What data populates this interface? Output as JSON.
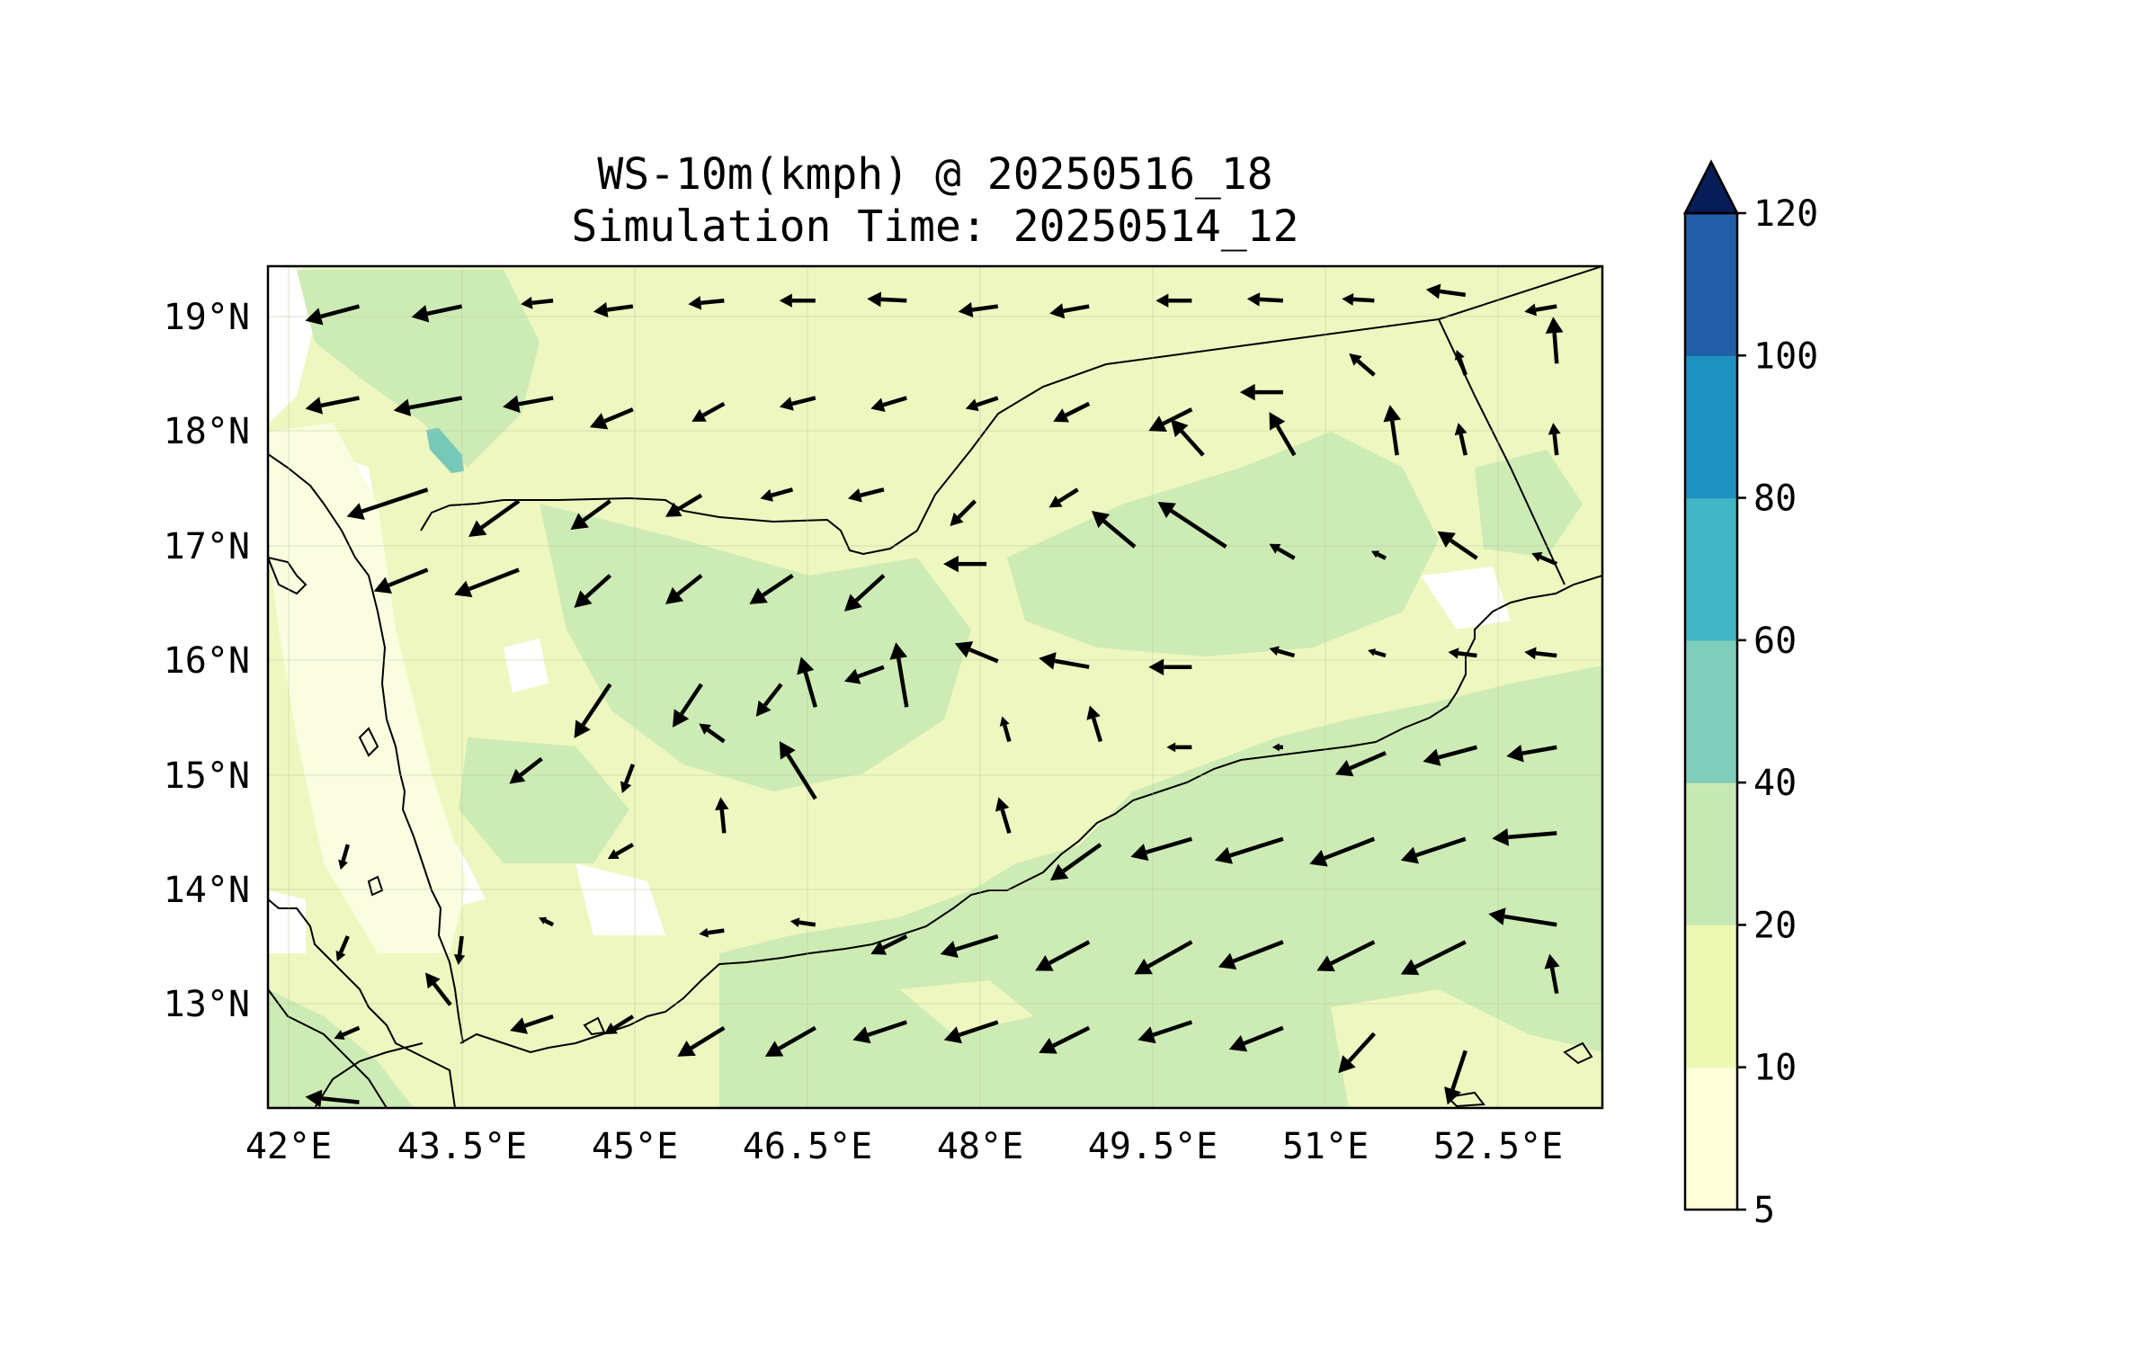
{
  "title": {
    "line1": "WS-10m(kmph) @ 20250516_18",
    "line2": "Simulation Time: 20250514_12"
  },
  "map": {
    "lon_range": [
      41.8,
      53.5
    ],
    "lat_range": [
      12.1,
      19.45
    ],
    "x_ticks": [
      "42°E",
      "43.5°E",
      "45°E",
      "46.5°E",
      "48°E",
      "49.5°E",
      "51°E",
      "52.5°E"
    ],
    "y_ticks": [
      "19°N",
      "18°N",
      "17°N",
      "16°N",
      "15°N",
      "14°N",
      "13°N"
    ],
    "region": "Yemen / southern Arabian Peninsula",
    "background_color": "#eef7c0",
    "sea_color": "#cdebb4"
  },
  "colorbar": {
    "levels": [
      "5",
      "10",
      "20",
      "40",
      "60",
      "80",
      "100",
      "120"
    ],
    "colors": [
      "#ffffd9",
      "#edf8b1",
      "#c7e9b4",
      "#7fcdbb",
      "#41b6c4",
      "#1d91c0",
      "#225ea8",
      "#0c2c84"
    ],
    "extend": "max",
    "extend_color": "#081d58"
  },
  "wind_vectors": {
    "description": "black quiver arrows showing 10m wind direction and magnitude",
    "arrows": [
      {
        "lon": 42.6,
        "lat": 19.1,
        "u": -30,
        "v": -8
      },
      {
        "lon": 43.5,
        "lat": 19.1,
        "u": -28,
        "v": -6
      },
      {
        "lon": 44.3,
        "lat": 19.15,
        "u": -18,
        "v": -2
      },
      {
        "lon": 45.0,
        "lat": 19.1,
        "u": -22,
        "v": -3
      },
      {
        "lon": 45.8,
        "lat": 19.15,
        "u": -20,
        "v": -2
      },
      {
        "lon": 46.6,
        "lat": 19.15,
        "u": -20,
        "v": 0
      },
      {
        "lon": 47.4,
        "lat": 19.15,
        "u": -22,
        "v": 1
      },
      {
        "lon": 48.2,
        "lat": 19.1,
        "u": -22,
        "v": -3
      },
      {
        "lon": 49.0,
        "lat": 19.1,
        "u": -22,
        "v": -4
      },
      {
        "lon": 49.9,
        "lat": 19.15,
        "u": -20,
        "v": 0
      },
      {
        "lon": 50.7,
        "lat": 19.15,
        "u": -20,
        "v": 1
      },
      {
        "lon": 51.5,
        "lat": 19.15,
        "u": -18,
        "v": 1
      },
      {
        "lon": 52.3,
        "lat": 19.2,
        "u": -22,
        "v": 3
      },
      {
        "lon": 53.1,
        "lat": 19.1,
        "u": -18,
        "v": -3
      },
      {
        "lon": 42.6,
        "lat": 18.3,
        "u": -30,
        "v": -6
      },
      {
        "lon": 43.5,
        "lat": 18.3,
        "u": -38,
        "v": -7
      },
      {
        "lon": 44.3,
        "lat": 18.3,
        "u": -28,
        "v": -5
      },
      {
        "lon": 45.0,
        "lat": 18.2,
        "u": -24,
        "v": -10
      },
      {
        "lon": 45.8,
        "lat": 18.25,
        "u": -18,
        "v": -10
      },
      {
        "lon": 46.6,
        "lat": 18.3,
        "u": -20,
        "v": -5
      },
      {
        "lon": 47.4,
        "lat": 18.3,
        "u": -20,
        "v": -6
      },
      {
        "lon": 48.2,
        "lat": 18.3,
        "u": -18,
        "v": -6
      },
      {
        "lon": 49.0,
        "lat": 18.25,
        "u": -20,
        "v": -10
      },
      {
        "lon": 49.9,
        "lat": 18.2,
        "u": -24,
        "v": -12
      },
      {
        "lon": 50.7,
        "lat": 18.35,
        "u": -24,
        "v": 0
      },
      {
        "lon": 51.5,
        "lat": 18.5,
        "u": -14,
        "v": 12
      },
      {
        "lon": 52.3,
        "lat": 18.5,
        "u": -5,
        "v": 14
      },
      {
        "lon": 53.1,
        "lat": 18.6,
        "u": -2,
        "v": 26
      },
      {
        "lon": 43.2,
        "lat": 17.5,
        "u": -45,
        "v": -15
      },
      {
        "lon": 44.0,
        "lat": 17.4,
        "u": -28,
        "v": -20
      },
      {
        "lon": 44.8,
        "lat": 17.4,
        "u": -22,
        "v": -16
      },
      {
        "lon": 45.6,
        "lat": 17.45,
        "u": -20,
        "v": -12
      },
      {
        "lon": 46.4,
        "lat": 17.5,
        "u": -18,
        "v": -5
      },
      {
        "lon": 47.2,
        "lat": 17.5,
        "u": -20,
        "v": -5
      },
      {
        "lon": 48.0,
        "lat": 17.4,
        "u": -14,
        "v": -14
      },
      {
        "lon": 48.9,
        "lat": 17.5,
        "u": -16,
        "v": -10
      },
      {
        "lon": 49.4,
        "lat": 17.0,
        "u": -24,
        "v": 20
      },
      {
        "lon": 50.2,
        "lat": 17.0,
        "u": -38,
        "v": 25
      },
      {
        "lon": 50.0,
        "lat": 17.8,
        "u": -18,
        "v": 20
      },
      {
        "lon": 50.8,
        "lat": 17.8,
        "u": -14,
        "v": 24
      },
      {
        "lon": 51.7,
        "lat": 17.8,
        "u": -4,
        "v": 28
      },
      {
        "lon": 52.3,
        "lat": 17.8,
        "u": -4,
        "v": 18
      },
      {
        "lon": 53.1,
        "lat": 17.8,
        "u": -2,
        "v": 18
      },
      {
        "lon": 43.2,
        "lat": 16.8,
        "u": -30,
        "v": -12
      },
      {
        "lon": 44.0,
        "lat": 16.8,
        "u": -36,
        "v": -14
      },
      {
        "lon": 44.8,
        "lat": 16.75,
        "u": -20,
        "v": -18
      },
      {
        "lon": 45.6,
        "lat": 16.75,
        "u": -20,
        "v": -16
      },
      {
        "lon": 46.4,
        "lat": 16.75,
        "u": -24,
        "v": -16
      },
      {
        "lon": 47.2,
        "lat": 16.75,
        "u": -22,
        "v": -20
      },
      {
        "lon": 48.1,
        "lat": 16.85,
        "u": -24,
        "v": 0
      },
      {
        "lon": 50.8,
        "lat": 16.9,
        "u": -14,
        "v": 8
      },
      {
        "lon": 51.6,
        "lat": 16.9,
        "u": -8,
        "v": 4
      },
      {
        "lon": 52.4,
        "lat": 16.9,
        "u": -22,
        "v": 15
      },
      {
        "lon": 53.1,
        "lat": 16.85,
        "u": -14,
        "v": 6
      },
      {
        "lon": 44.8,
        "lat": 15.8,
        "u": -20,
        "v": -30
      },
      {
        "lon": 45.6,
        "lat": 15.8,
        "u": -16,
        "v": -24
      },
      {
        "lon": 46.3,
        "lat": 15.8,
        "u": -14,
        "v": -18
      },
      {
        "lon": 46.6,
        "lat": 15.6,
        "u": -8,
        "v": 28
      },
      {
        "lon": 47.4,
        "lat": 15.6,
        "u": -6,
        "v": 36
      },
      {
        "lon": 47.2,
        "lat": 15.95,
        "u": -22,
        "v": -8
      },
      {
        "lon": 48.2,
        "lat": 16.0,
        "u": -24,
        "v": 10
      },
      {
        "lon": 49.0,
        "lat": 15.95,
        "u": -28,
        "v": 5
      },
      {
        "lon": 49.9,
        "lat": 15.95,
        "u": -24,
        "v": 0
      },
      {
        "lon": 50.8,
        "lat": 16.05,
        "u": -14,
        "v": 4
      },
      {
        "lon": 51.6,
        "lat": 16.05,
        "u": -10,
        "v": 3
      },
      {
        "lon": 52.4,
        "lat": 16.05,
        "u": -16,
        "v": 2
      },
      {
        "lon": 53.1,
        "lat": 16.05,
        "u": -18,
        "v": 2
      },
      {
        "lon": 44.2,
        "lat": 15.15,
        "u": -18,
        "v": -14
      },
      {
        "lon": 45.0,
        "lat": 15.1,
        "u": -6,
        "v": -16
      },
      {
        "lon": 45.8,
        "lat": 15.3,
        "u": -14,
        "v": 10
      },
      {
        "lon": 46.6,
        "lat": 14.8,
        "u": -20,
        "v": 32
      },
      {
        "lon": 48.3,
        "lat": 15.3,
        "u": -4,
        "v": 14
      },
      {
        "lon": 49.1,
        "lat": 15.3,
        "u": -6,
        "v": 20
      },
      {
        "lon": 49.9,
        "lat": 15.25,
        "u": -14,
        "v": 0
      },
      {
        "lon": 50.7,
        "lat": 15.25,
        "u": -6,
        "v": 0
      },
      {
        "lon": 51.6,
        "lat": 15.2,
        "u": -28,
        "v": -12
      },
      {
        "lon": 52.4,
        "lat": 15.25,
        "u": -30,
        "v": -8
      },
      {
        "lon": 53.1,
        "lat": 15.25,
        "u": -28,
        "v": -5
      },
      {
        "lon": 42.5,
        "lat": 14.4,
        "u": -4,
        "v": -14
      },
      {
        "lon": 45.0,
        "lat": 14.4,
        "u": -14,
        "v": -8
      },
      {
        "lon": 45.8,
        "lat": 14.5,
        "u": -2,
        "v": 20
      },
      {
        "lon": 48.3,
        "lat": 14.5,
        "u": -6,
        "v": 20
      },
      {
        "lon": 49.1,
        "lat": 14.4,
        "u": -28,
        "v": -20
      },
      {
        "lon": 49.9,
        "lat": 14.45,
        "u": -34,
        "v": -10
      },
      {
        "lon": 50.7,
        "lat": 14.45,
        "u": -38,
        "v": -12
      },
      {
        "lon": 51.5,
        "lat": 14.45,
        "u": -36,
        "v": -14
      },
      {
        "lon": 52.3,
        "lat": 14.45,
        "u": -36,
        "v": -12
      },
      {
        "lon": 53.1,
        "lat": 14.5,
        "u": -36,
        "v": -3
      },
      {
        "lon": 42.5,
        "lat": 13.6,
        "u": -6,
        "v": -14
      },
      {
        "lon": 43.5,
        "lat": 13.6,
        "u": -2,
        "v": -16
      },
      {
        "lon": 44.3,
        "lat": 13.7,
        "u": -8,
        "v": 4
      },
      {
        "lon": 45.8,
        "lat": 13.65,
        "u": -14,
        "v": -2
      },
      {
        "lon": 46.6,
        "lat": 13.7,
        "u": -14,
        "v": 2
      },
      {
        "lon": 47.4,
        "lat": 13.6,
        "u": -20,
        "v": -10
      },
      {
        "lon": 48.2,
        "lat": 13.6,
        "u": -32,
        "v": -10
      },
      {
        "lon": 49.0,
        "lat": 13.55,
        "u": -30,
        "v": -16
      },
      {
        "lon": 49.9,
        "lat": 13.55,
        "u": -32,
        "v": -18
      },
      {
        "lon": 50.7,
        "lat": 13.55,
        "u": -36,
        "v": -14
      },
      {
        "lon": 51.5,
        "lat": 13.55,
        "u": -32,
        "v": -16
      },
      {
        "lon": 52.3,
        "lat": 13.55,
        "u": -36,
        "v": -18
      },
      {
        "lon": 53.1,
        "lat": 13.7,
        "u": -38,
        "v": 6
      },
      {
        "lon": 43.4,
        "lat": 13.0,
        "u": -14,
        "v": 18
      },
      {
        "lon": 42.6,
        "lat": 12.8,
        "u": -14,
        "v": -6
      },
      {
        "lon": 44.3,
        "lat": 12.9,
        "u": -24,
        "v": -8
      },
      {
        "lon": 45.0,
        "lat": 12.9,
        "u": -16,
        "v": -10
      },
      {
        "lon": 45.8,
        "lat": 12.8,
        "u": -26,
        "v": -16
      },
      {
        "lon": 46.6,
        "lat": 12.8,
        "u": -28,
        "v": -16
      },
      {
        "lon": 47.4,
        "lat": 12.85,
        "u": -30,
        "v": -10
      },
      {
        "lon": 48.2,
        "lat": 12.85,
        "u": -30,
        "v": -10
      },
      {
        "lon": 49.0,
        "lat": 12.8,
        "u": -28,
        "v": -14
      },
      {
        "lon": 49.9,
        "lat": 12.85,
        "u": -30,
        "v": -10
      },
      {
        "lon": 50.7,
        "lat": 12.8,
        "u": -30,
        "v": -12
      },
      {
        "lon": 51.5,
        "lat": 12.75,
        "u": -20,
        "v": -22
      },
      {
        "lon": 52.3,
        "lat": 12.6,
        "u": -10,
        "v": -30
      },
      {
        "lon": 53.1,
        "lat": 13.1,
        "u": -4,
        "v": 22
      },
      {
        "lon": 42.6,
        "lat": 12.15,
        "u": -30,
        "v": 3
      }
    ]
  }
}
